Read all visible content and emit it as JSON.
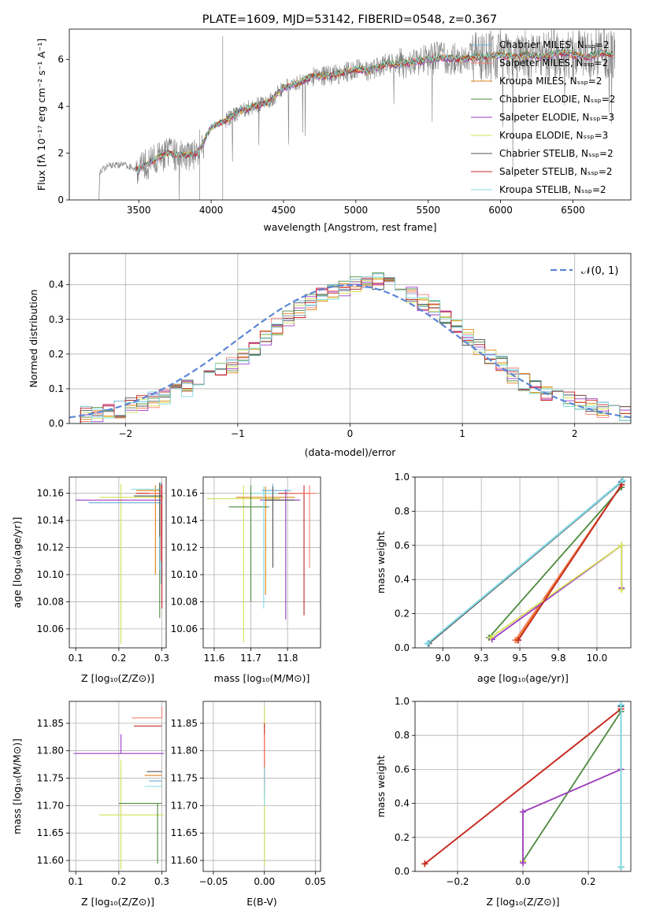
{
  "chart_data": [
    {
      "id": "spectrum",
      "type": "line",
      "title": "PLATE=1609, MJD=53142, FIBERID=0548, z=0.367",
      "xlabel": "wavelength [Angstrom, rest frame]",
      "ylabel": "Flux [fλ 10⁻¹⁷ erg cm⁻² s⁻¹ A⁻¹]",
      "xlim": [
        3020,
        6900
      ],
      "ylim": [
        0,
        7.3
      ],
      "xticks": [
        3500,
        4000,
        4500,
        5000,
        5500,
        6000,
        6500
      ],
      "yticks": [
        0,
        2,
        4,
        6
      ],
      "grid": false,
      "legend_position": "top-right",
      "continuum": {
        "wavelength": [
          3230,
          3300,
          3400,
          3500,
          3600,
          3700,
          3800,
          3900,
          3950,
          4000,
          4100,
          4200,
          4300,
          4400,
          4500,
          4600,
          4700,
          4800,
          4900,
          5000,
          5100,
          5200,
          5300,
          5400,
          5500,
          5600,
          5700,
          5800,
          5900,
          6000,
          6100,
          6200,
          6300,
          6400,
          6500,
          6600,
          6700,
          6780
        ],
        "flux": [
          1.2,
          1.5,
          1.5,
          1.3,
          1.7,
          2.0,
          1.9,
          2.0,
          2.5,
          3.1,
          3.4,
          3.8,
          4.0,
          4.2,
          4.8,
          5.0,
          5.3,
          5.3,
          5.4,
          5.6,
          5.5,
          5.8,
          5.8,
          5.9,
          6.0,
          6.1,
          6.0,
          6.1,
          6.1,
          6.2,
          6.1,
          6.2,
          6.1,
          6.3,
          6.2,
          6.1,
          6.3,
          6.2
        ]
      },
      "series": [
        {
          "name": "Chabrier MILES, N_SSP=2",
          "color": "#6baed6",
          "scale": 1.0
        },
        {
          "name": "Salpeter MILES, N_SSP=2",
          "color": "#fb8072",
          "scale": 1.005
        },
        {
          "name": "Kroupa MILES, N_SSP=2",
          "color": "#e08214",
          "scale": 0.995
        },
        {
          "name": "Chabrier ELODIE, N_SSP=2",
          "color": "#4d8a3d",
          "scale": 1.01
        },
        {
          "name": "Salpeter ELODIE, N_SSP=3",
          "color": "#9e3cc6",
          "scale": 0.99
        },
        {
          "name": "Kroupa ELODIE, N_SSP=3",
          "color": "#d4e157",
          "scale": 1.0
        },
        {
          "name": "Chabrier STELIB, N_SSP=2",
          "color": "#555555",
          "scale": 1.003
        },
        {
          "name": "Salpeter STELIB, N_SSP=2",
          "color": "#c62828",
          "scale": 0.998
        },
        {
          "name": "Kroupa STELIB, N_SSP=2",
          "color": "#80deea",
          "scale": 1.002
        }
      ]
    },
    {
      "id": "residuals",
      "type": "line",
      "xlabel": "(data-model)/error",
      "ylabel": "Normed distribution",
      "xlim": [
        -2.5,
        2.5
      ],
      "ylim": [
        0,
        0.49
      ],
      "xticks": [
        -2,
        -1,
        0,
        1,
        2
      ],
      "yticks": [
        0.0,
        0.1,
        0.2,
        0.3,
        0.4
      ],
      "grid": true,
      "legend_position": "top-right",
      "reference_curve": {
        "name": "N(0,1)",
        "label": "𝒩(0, 1)",
        "color": "#5b86d6",
        "style": "dashed"
      },
      "hist_edges": [
        -2.5,
        -2.4,
        -2.3,
        -2.2,
        -2.1,
        -2.0,
        -1.9,
        -1.8,
        -1.7,
        -1.6,
        -1.5,
        -1.4,
        -1.3,
        -1.2,
        -1.1,
        -1.0,
        -0.9,
        -0.8,
        -0.7,
        -0.6,
        -0.5,
        -0.4,
        -0.3,
        -0.2,
        -0.1,
        0.0,
        0.1,
        0.2,
        0.3,
        0.4,
        0.5,
        0.6,
        0.7,
        0.8,
        0.9,
        1.0,
        1.1,
        1.2,
        1.3,
        1.4,
        1.5,
        1.6,
        1.7,
        1.8,
        1.9,
        2.0,
        2.1,
        2.2,
        2.3,
        2.4,
        2.5
      ],
      "hist_base": [
        0.02,
        0.025,
        0.03,
        0.035,
        0.04,
        0.05,
        0.06,
        0.07,
        0.08,
        0.09,
        0.1,
        0.12,
        0.13,
        0.15,
        0.17,
        0.19,
        0.22,
        0.25,
        0.28,
        0.3,
        0.33,
        0.35,
        0.37,
        0.38,
        0.39,
        0.4,
        0.41,
        0.41,
        0.4,
        0.39,
        0.37,
        0.35,
        0.33,
        0.3,
        0.28,
        0.25,
        0.22,
        0.19,
        0.17,
        0.14,
        0.12,
        0.1,
        0.09,
        0.08,
        0.07,
        0.06,
        0.05,
        0.04,
        0.035,
        0.03
      ]
    },
    {
      "id": "age-vs-Z",
      "type": "scatter",
      "xlabel": "Z [log₁₀(Z/Z⊙)]",
      "ylabel": "age  [log₁₀(age/yr)]",
      "xlim": [
        0.085,
        0.31
      ],
      "ylim": [
        10.046,
        10.172
      ],
      "xticks": [
        0.1,
        0.2,
        0.3
      ],
      "yticks": [
        10.06,
        10.08,
        10.1,
        10.12,
        10.14,
        10.16
      ],
      "grid": true,
      "points": [
        {
          "x": 0.205,
          "y": 10.157,
          "x_err": [
            0.05,
            0.1
          ],
          "y_err": [
            0.108,
            0.01
          ],
          "color": "#d4e157"
        },
        {
          "x": 0.285,
          "y": 10.162,
          "x_err": [
            0.045,
            0.015
          ],
          "y_err": [
            0.062,
            0.004
          ],
          "color": "#e08214"
        },
        {
          "x": 0.295,
          "y": 10.158,
          "x_err": [
            0.055,
            0.005
          ],
          "y_err": [
            0.09,
            0.009
          ],
          "color": "#4d8a3d"
        },
        {
          "x": 0.3,
          "y": 10.155,
          "x_err": [
            0.2,
            0.001
          ],
          "y_err": [
            0.08,
            0.01
          ],
          "color": "#9e3cc6"
        },
        {
          "x": 0.3,
          "y": 10.16,
          "x_err": [
            0.06,
            0.001
          ],
          "y_err": [
            0.085,
            0.007
          ],
          "color": "#c62828"
        },
        {
          "x": 0.298,
          "y": 10.163,
          "x_err": [
            0.07,
            0.002
          ],
          "y_err": [
            0.07,
            0.005
          ],
          "color": "#80deea"
        },
        {
          "x": 0.298,
          "y": 10.16,
          "x_err": [
            0.028,
            0.002
          ],
          "y_err": [
            0.05,
            0.006
          ],
          "color": "#fb8072"
        },
        {
          "x": 0.295,
          "y": 10.153,
          "x_err": [
            0.165,
            0.005
          ],
          "y_err": [
            0.05,
            0.01
          ],
          "color": "#6baed6"
        },
        {
          "x": 0.295,
          "y": 10.158,
          "x_err": [
            0.06,
            0.005
          ],
          "y_err": [
            0.03,
            0.01
          ],
          "color": "#555555"
        }
      ]
    },
    {
      "id": "age-vs-mass",
      "type": "scatter",
      "xlabel": "mass [log₁₀(M/M⊙)]",
      "ylabel": "",
      "xlim": [
        11.57,
        11.89
      ],
      "ylim": [
        10.046,
        10.172
      ],
      "xticks": [
        11.6,
        11.7,
        11.8
      ],
      "yticks": [
        10.06,
        10.08,
        10.1,
        10.12,
        10.14,
        10.16
      ],
      "grid": true,
      "points": [
        {
          "x": 11.68,
          "y": 10.156,
          "x_err": [
            0.1,
            0.1
          ],
          "y_err": [
            0.106,
            0.01
          ],
          "color": "#d4e157"
        },
        {
          "x": 11.74,
          "y": 10.157,
          "x_err": [
            0.08,
            0.08
          ],
          "y_err": [
            0.072,
            0.008
          ],
          "color": "#e08214"
        },
        {
          "x": 11.7,
          "y": 10.15,
          "x_err": [
            0.06,
            0.05
          ],
          "y_err": [
            0.07,
            0.016
          ],
          "color": "#4d8a3d"
        },
        {
          "x": 11.795,
          "y": 10.155,
          "x_err": [
            0.07,
            0.04
          ],
          "y_err": [
            0.088,
            0.008
          ],
          "color": "#9e3cc6"
        },
        {
          "x": 11.845,
          "y": 10.16,
          "x_err": [
            0.07,
            0.02
          ],
          "y_err": [
            0.09,
            0.006
          ],
          "color": "#c62828"
        },
        {
          "x": 11.735,
          "y": 10.16,
          "x_err": [
            0.03,
            0.04
          ],
          "y_err": [
            0.085,
            0.005
          ],
          "color": "#80deea"
        },
        {
          "x": 11.86,
          "y": 10.16,
          "x_err": [
            0.06,
            0.02
          ],
          "y_err": [
            0.055,
            0.006
          ],
          "color": "#fb8072"
        },
        {
          "x": 11.76,
          "y": 10.162,
          "x_err": [
            0.03,
            0.05
          ],
          "y_err": [
            0.04,
            0.005
          ],
          "color": "#6baed6"
        },
        {
          "x": 11.76,
          "y": 10.155,
          "x_err": [
            0.02,
            0.06
          ],
          "y_err": [
            0.05,
            0.01
          ],
          "color": "#555555"
        }
      ]
    },
    {
      "id": "mass-weight-vs-age",
      "type": "line",
      "xlabel": "age  [log₁₀(age/yr)]",
      "ylabel": "mass weight",
      "xlim": [
        8.82,
        10.22
      ],
      "ylim": [
        0,
        1.0
      ],
      "xticks": [
        9.0,
        9.25,
        9.5,
        9.75,
        10.0
      ],
      "yticks": [
        0.0,
        0.2,
        0.4,
        0.6,
        0.8,
        1.0
      ],
      "grid": true,
      "series": [
        {
          "name": "Chabrier MILES",
          "color": "#6baed6",
          "x": [
            8.9,
            10.16
          ],
          "y": [
            0.025,
            0.975
          ]
        },
        {
          "name": "Salpeter MILES",
          "color": "#fb8072",
          "x": [
            9.47,
            10.16
          ],
          "y": [
            0.045,
            0.955
          ]
        },
        {
          "name": "Kroupa MILES",
          "color": "#e08214",
          "x": [
            9.48,
            10.16
          ],
          "y": [
            0.045,
            0.955
          ]
        },
        {
          "name": "Chabrier ELODIE",
          "color": "#4d8a3d",
          "x": [
            9.3,
            10.16
          ],
          "y": [
            0.06,
            0.94
          ]
        },
        {
          "name": "Salpeter ELODIE",
          "color": "#9e3cc6",
          "x": [
            9.32,
            10.16,
            10.16
          ],
          "y": [
            0.05,
            0.6,
            0.35
          ]
        },
        {
          "name": "Kroupa ELODIE",
          "color": "#d4e157",
          "x": [
            9.31,
            10.16,
            10.16
          ],
          "y": [
            0.06,
            0.6,
            0.34
          ]
        },
        {
          "name": "Chabrier STELIB",
          "color": "#555555",
          "x": [
            8.91,
            10.16
          ],
          "y": [
            0.025,
            0.97
          ]
        },
        {
          "name": "Salpeter STELIB",
          "color": "#c62828",
          "x": [
            9.49,
            10.16
          ],
          "y": [
            0.045,
            0.955
          ]
        },
        {
          "name": "Kroupa STELIB",
          "color": "#80deea",
          "x": [
            8.9,
            10.17
          ],
          "y": [
            0.025,
            0.98
          ]
        }
      ]
    },
    {
      "id": "mass-vs-Z",
      "type": "scatter",
      "xlabel": "Z [log₁₀(Z/Z⊙)]",
      "ylabel": "mass [log₁₀(M/M⊙)]",
      "xlim": [
        0.085,
        0.31
      ],
      "ylim": [
        11.58,
        11.89
      ],
      "xticks": [
        0.1,
        0.2,
        0.3
      ],
      "yticks": [
        11.6,
        11.65,
        11.7,
        11.75,
        11.8,
        11.85
      ],
      "grid": true,
      "points": [
        {
          "x": 0.205,
          "y": 11.683,
          "x_err": [
            0.05,
            0.1
          ],
          "y_err": [
            0.1,
            0.1
          ],
          "color": "#d4e157"
        },
        {
          "x": 0.205,
          "y": 11.795,
          "x_err": [
            0.11,
            0.1
          ],
          "y_err": [
            0.0,
            0.035
          ],
          "color": "#9e3cc6"
        },
        {
          "x": 0.29,
          "y": 11.704,
          "x_err": [
            0.09,
            0.01
          ],
          "y_err": [
            0.11,
            0.0
          ],
          "color": "#4d8a3d"
        },
        {
          "x": 0.3,
          "y": 11.845,
          "x_err": [
            0.065,
            0.0
          ],
          "y_err": [
            0.0,
            0.0
          ],
          "color": "#c62828"
        },
        {
          "x": 0.3,
          "y": 11.86,
          "x_err": [
            0.07,
            0.0
          ],
          "y_err": [
            0.0,
            0.02
          ],
          "color": "#fb8072"
        },
        {
          "x": 0.3,
          "y": 11.755,
          "x_err": [
            0.04,
            0.0
          ],
          "y_err": [
            0.0,
            0.0
          ],
          "color": "#e08214"
        },
        {
          "x": 0.3,
          "y": 11.762,
          "x_err": [
            0.035,
            0.0
          ],
          "y_err": [
            0.0,
            0.0
          ],
          "color": "#555555"
        },
        {
          "x": 0.3,
          "y": 11.745,
          "x_err": [
            0.03,
            0.0
          ],
          "y_err": [
            0.0,
            0.0
          ],
          "color": "#6baed6"
        },
        {
          "x": 0.3,
          "y": 11.735,
          "x_err": [
            0.04,
            0.0
          ],
          "y_err": [
            0.0,
            0.0
          ],
          "color": "#80deea"
        }
      ]
    },
    {
      "id": "mass-vs-ebv",
      "type": "scatter",
      "xlabel": "E(B-V)",
      "ylabel": "",
      "xlim": [
        -0.06,
        0.055
      ],
      "ylim": [
        11.58,
        11.89
      ],
      "xticks": [
        -0.05,
        0.0,
        0.05
      ],
      "yticks": [
        11.6,
        11.65,
        11.7,
        11.75,
        11.8,
        11.85
      ],
      "grid": true,
      "points": [
        {
          "x": 0.0,
          "y": 11.79,
          "x_err": [
            0,
            0
          ],
          "y_err": [
            0.2,
            0.09
          ],
          "color": "#d4e157"
        },
        {
          "x": 0.0,
          "y": 11.8,
          "x_err": [
            0,
            0
          ],
          "y_err": [
            0.06,
            0.05
          ],
          "color": "#c62828"
        },
        {
          "x": 0.0,
          "y": 11.8,
          "x_err": [
            0,
            0
          ],
          "y_err": [
            0.08,
            0.03
          ],
          "color": "#fb8072"
        },
        {
          "x": 0.0,
          "y": 11.74,
          "x_err": [
            0,
            0
          ],
          "y_err": [
            0.04,
            0.03
          ],
          "color": "#80deea"
        }
      ]
    },
    {
      "id": "mass-weight-vs-Z",
      "type": "line",
      "xlabel": "Z [log₁₀(Z/Z⊙)]",
      "ylabel": "mass weight",
      "xlim": [
        -0.33,
        0.33
      ],
      "ylim": [
        0,
        1.0
      ],
      "xticks": [
        -0.2,
        0.0,
        0.2
      ],
      "yticks": [
        0.0,
        0.2,
        0.4,
        0.6,
        0.8,
        1.0
      ],
      "grid": true,
      "series": [
        {
          "name": "Salpeter MILES",
          "color": "#fb8072",
          "x": [
            -0.3,
            0.3
          ],
          "y": [
            0.045,
            0.955
          ]
        },
        {
          "name": "Kroupa MILES",
          "color": "#e08214",
          "x": [
            -0.3,
            0.3
          ],
          "y": [
            0.045,
            0.955
          ]
        },
        {
          "name": "Salpeter STELIB",
          "color": "#c62828",
          "x": [
            -0.3,
            0.3
          ],
          "y": [
            0.045,
            0.955
          ]
        },
        {
          "name": "Chabrier ELODIE",
          "color": "#4d8a3d",
          "x": [
            0.0,
            0.3
          ],
          "y": [
            0.06,
            0.94
          ]
        },
        {
          "name": "Kroupa ELODIE",
          "color": "#d4e157",
          "x": [
            0.0,
            0.0,
            0.3
          ],
          "y": [
            0.06,
            0.35,
            0.6
          ]
        },
        {
          "name": "Salpeter ELODIE",
          "color": "#9e3cc6",
          "x": [
            0.0,
            0.0,
            0.3
          ],
          "y": [
            0.05,
            0.35,
            0.6
          ]
        },
        {
          "name": "Chabrier MILES",
          "color": "#6baed6",
          "x": [
            0.3,
            0.3
          ],
          "y": [
            0.025,
            0.975
          ]
        },
        {
          "name": "Chabrier STELIB",
          "color": "#555555",
          "x": [
            0.3,
            0.3
          ],
          "y": [
            0.025,
            0.97
          ]
        },
        {
          "name": "Kroupa STELIB",
          "color": "#80deea",
          "x": [
            0.3,
            0.3
          ],
          "y": [
            0.025,
            0.98
          ]
        }
      ]
    }
  ]
}
